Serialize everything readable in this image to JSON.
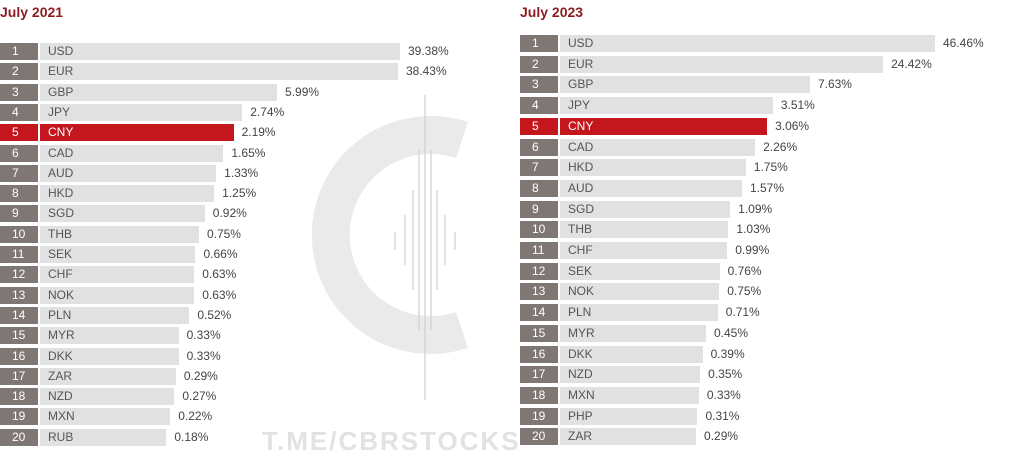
{
  "accent_color": "#c3171d",
  "title_color": "#8c1d22",
  "watermark": {
    "text": "T.ME/CBRSTOCKS"
  },
  "chart_data": [
    {
      "type": "bar",
      "orientation": "horizontal",
      "title": "July 2021",
      "unit": "%",
      "highlight": "CNY",
      "xlim": [
        0,
        39.38
      ],
      "categories": [
        "USD",
        "EUR",
        "GBP",
        "JPY",
        "CNY",
        "CAD",
        "AUD",
        "HKD",
        "SGD",
        "THB",
        "SEK",
        "CHF",
        "NOK",
        "PLN",
        "MYR",
        "DKK",
        "ZAR",
        "NZD",
        "MXN",
        "RUB"
      ],
      "ranks": [
        "1",
        "2",
        "3",
        "4",
        "5",
        "6",
        "7",
        "8",
        "9",
        "10",
        "11",
        "12",
        "13",
        "14",
        "15",
        "16",
        "17",
        "18",
        "19",
        "20"
      ],
      "values": [
        39.38,
        38.43,
        5.99,
        2.74,
        2.19,
        1.65,
        1.33,
        1.25,
        0.92,
        0.75,
        0.66,
        0.63,
        0.63,
        0.52,
        0.33,
        0.33,
        0.29,
        0.27,
        0.22,
        0.18
      ],
      "labels": [
        "39.38%",
        "38.43%",
        "5.99%",
        "2.74%",
        "2.19%",
        "1.65%",
        "1.33%",
        "1.25%",
        "0.92%",
        "0.75%",
        "0.66%",
        "0.63%",
        "0.63%",
        "0.52%",
        "0.33%",
        "0.33%",
        "0.29%",
        "0.27%",
        "0.22%",
        "0.18%"
      ]
    },
    {
      "type": "bar",
      "orientation": "horizontal",
      "title": "July 2023",
      "unit": "%",
      "highlight": "CNY",
      "xlim": [
        0,
        46.46
      ],
      "categories": [
        "USD",
        "EUR",
        "GBP",
        "JPY",
        "CNY",
        "CAD",
        "HKD",
        "AUD",
        "SGD",
        "THB",
        "CHF",
        "SEK",
        "NOK",
        "PLN",
        "MYR",
        "DKK",
        "NZD",
        "MXN",
        "PHP",
        "ZAR"
      ],
      "ranks": [
        "1",
        "2",
        "3",
        "4",
        "5",
        "6",
        "7",
        "8",
        "9",
        "10",
        "11",
        "12",
        "13",
        "14",
        "15",
        "16",
        "17",
        "18",
        "19",
        "20"
      ],
      "values": [
        46.46,
        24.42,
        7.63,
        3.51,
        3.06,
        2.26,
        1.75,
        1.57,
        1.09,
        1.03,
        0.99,
        0.76,
        0.75,
        0.71,
        0.45,
        0.39,
        0.35,
        0.33,
        0.31,
        0.29
      ],
      "labels": [
        "46.46%",
        "24.42%",
        "7.63%",
        "3.51%",
        "3.06%",
        "2.26%",
        "1.75%",
        "1.57%",
        "1.09%",
        "1.03%",
        "0.99%",
        "0.76%",
        "0.75%",
        "0.71%",
        "0.45%",
        "0.39%",
        "0.35%",
        "0.33%",
        "0.31%",
        "0.29%"
      ]
    }
  ]
}
